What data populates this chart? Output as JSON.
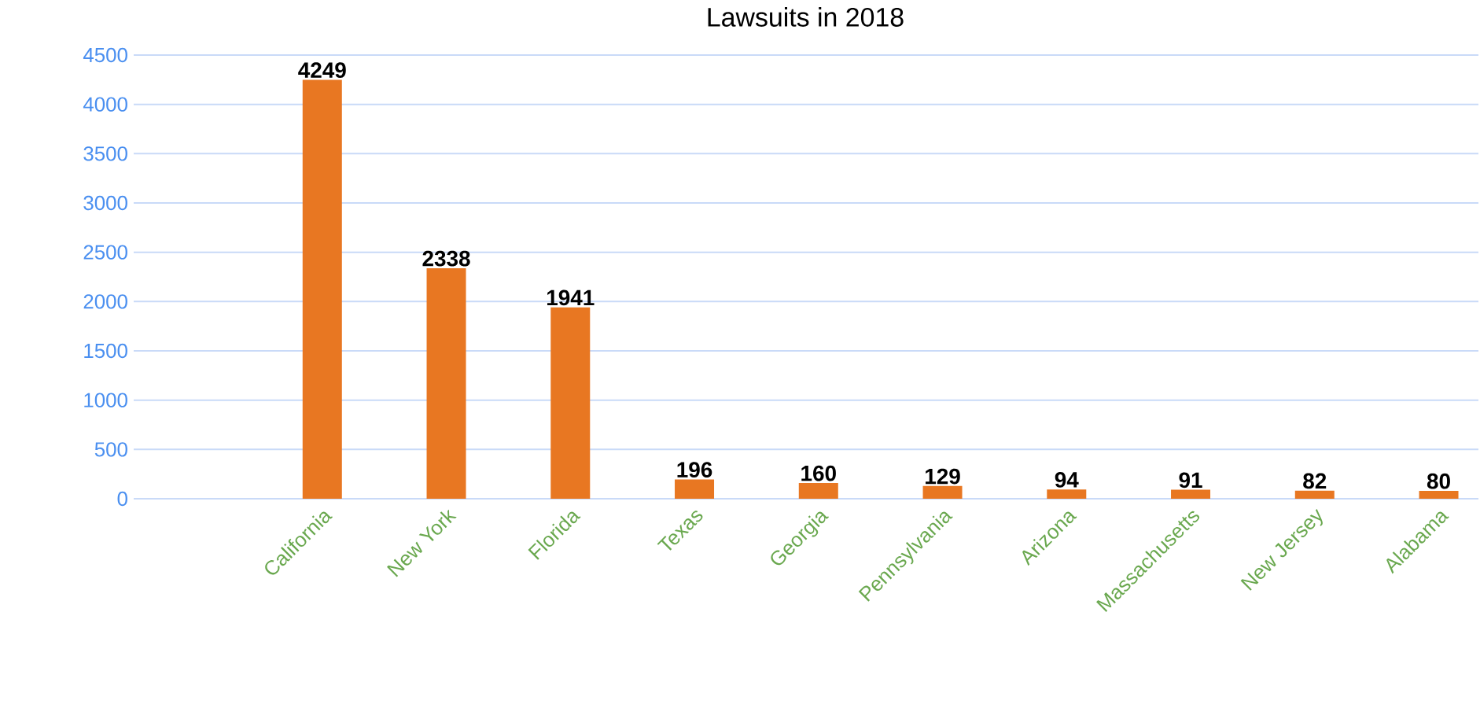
{
  "chart_data": {
    "type": "bar",
    "title": "Lawsuits in 2018",
    "categories": [
      "California",
      "New York",
      "Florida",
      "Texas",
      "Georgia",
      "Pennsylvania",
      "Arizona",
      "Massachusetts",
      "New Jersey",
      "Alabama"
    ],
    "values": [
      4249,
      2338,
      1941,
      196,
      160,
      129,
      94,
      91,
      82,
      80
    ],
    "color": "#e87722",
    "ylim": [
      0,
      4500
    ],
    "yticks": [
      0,
      500,
      1000,
      1500,
      2000,
      2500,
      3000,
      3500,
      4000,
      4500
    ],
    "grid": "y",
    "data_labels": true
  }
}
